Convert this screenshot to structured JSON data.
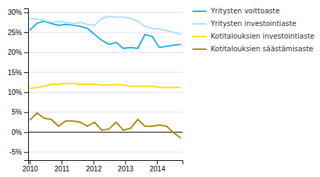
{
  "chart_data": {
    "type": "line",
    "x": [
      2010,
      2010.2261904761906,
      2010.452380952381,
      2010.6785714285713,
      2010.904761904762,
      2011.1309523809523,
      2011.357142857143,
      2011.5833333333333,
      2011.8095238095239,
      2012.0357142857142,
      2012.2619047619048,
      2012.4880952380952,
      2012.7142857142858,
      2012.9404761904761,
      2013.1666666666667,
      2013.392857142857,
      2013.6190476190477,
      2013.845238095238,
      2014.0714285714287,
      2014.2976190476193,
      2014.5238095238096,
      2014.75
    ],
    "series": [
      {
        "name": "Yritysten voittoaste",
        "color": "#1aade6",
        "values": [
          25.5,
          27.3,
          27.8,
          27.2,
          26.8,
          27.0,
          26.8,
          26.5,
          26.0,
          24.5,
          23.0,
          22.0,
          22.5,
          21.0,
          21.2,
          21.0,
          24.5,
          24.0,
          21.2,
          21.5,
          21.8,
          22.0
        ]
      },
      {
        "name": "Yritysten investointiaste",
        "color": "#aaddff",
        "values": [
          28.5,
          28.3,
          28.0,
          27.5,
          27.8,
          27.5,
          27.2,
          27.5,
          27.0,
          26.8,
          28.5,
          29.0,
          28.8,
          28.8,
          28.5,
          27.8,
          26.5,
          26.0,
          25.8,
          25.5,
          25.0,
          24.5
        ]
      },
      {
        "name": "Kotitalouksien investointiaste",
        "color": "#ffdd00",
        "values": [
          11.0,
          11.2,
          11.5,
          12.0,
          12.0,
          12.2,
          12.2,
          12.0,
          12.0,
          12.0,
          11.8,
          11.8,
          12.0,
          11.8,
          11.5,
          11.5,
          11.5,
          11.5,
          11.2,
          11.2,
          11.2,
          11.2
        ]
      },
      {
        "name": "Kotitalouksien säästämisaste",
        "color": "#aa8800",
        "values": [
          3.0,
          4.8,
          3.5,
          3.2,
          1.5,
          2.8,
          2.8,
          2.5,
          1.5,
          2.5,
          0.5,
          0.8,
          2.5,
          0.5,
          1.0,
          3.2,
          1.5,
          1.5,
          1.8,
          1.5,
          -0.2,
          -1.5
        ]
      }
    ],
    "xlim": [
      2009.95,
      2014.8
    ],
    "xticks": [
      2010,
      2011,
      2012,
      2013,
      2014
    ],
    "ylim": [
      -7,
      31
    ],
    "yticks": [
      {
        "value": -5,
        "label": "-5%"
      },
      {
        "value": 0,
        "label": "0%"
      },
      {
        "value": 5,
        "label": "5%"
      },
      {
        "value": 10,
        "label": "10%"
      },
      {
        "value": 15,
        "label": "15%"
      },
      {
        "value": 20,
        "label": "20%"
      },
      {
        "value": 25,
        "label": "25%"
      },
      {
        "value": 30,
        "label": "30%"
      }
    ],
    "grid": true,
    "legend": "right"
  }
}
